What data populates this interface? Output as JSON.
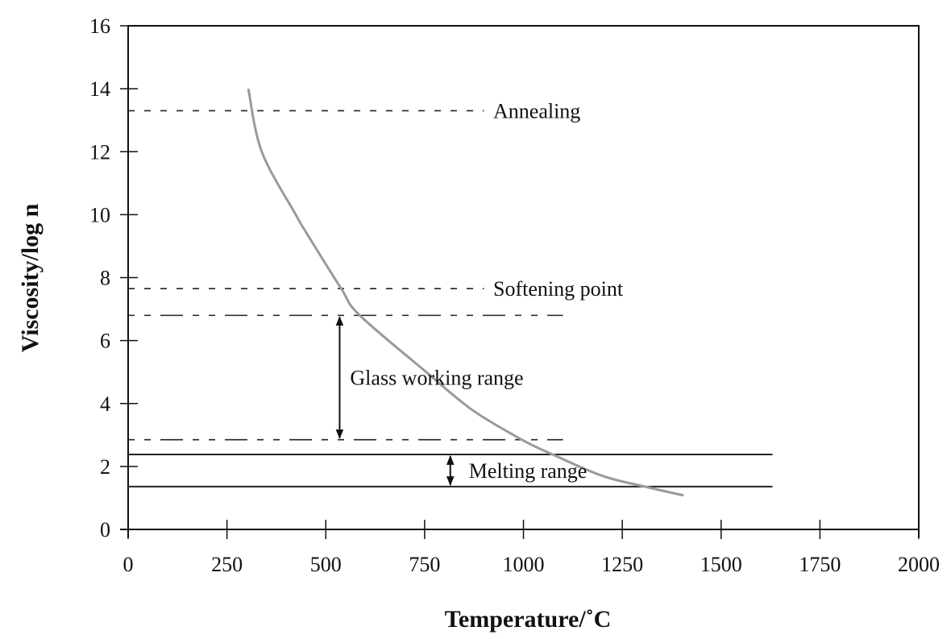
{
  "chart_data": {
    "type": "line",
    "title": "",
    "xlabel": "Temperature/˚C",
    "ylabel": "Viscosity/log n",
    "xlim": [
      0,
      2000
    ],
    "ylim": [
      0,
      16
    ],
    "xticks": [
      "0",
      "250",
      "500",
      "750",
      "1000",
      "1250",
      "1500",
      "1750",
      "2000"
    ],
    "yticks": [
      "0",
      "2",
      "4",
      "6",
      "8",
      "10",
      "12",
      "14",
      "16"
    ],
    "grid": false,
    "curve": {
      "color": "#9a9a9a",
      "points": [
        [
          304,
          14.0
        ],
        [
          338,
          12.0
        ],
        [
          424,
          10.0
        ],
        [
          452,
          9.4
        ],
        [
          539,
          7.65
        ],
        [
          586,
          6.8
        ],
        [
          754,
          5.0
        ],
        [
          870,
          3.8
        ],
        [
          996,
          2.85
        ],
        [
          1074,
          2.38
        ],
        [
          1200,
          1.7
        ],
        [
          1307,
          1.36
        ],
        [
          1405,
          1.08
        ]
      ]
    },
    "reference_lines": [
      {
        "label": "Annealing",
        "y": 13.3,
        "x_end": 900,
        "style": "dashed"
      },
      {
        "label": "Softening point",
        "y": 7.65,
        "x_end": 900,
        "style": "dashed"
      },
      {
        "label": "",
        "y": 6.8,
        "x_end": 1100,
        "style": "dash-dot"
      },
      {
        "label": "",
        "y": 2.85,
        "x_end": 1100,
        "style": "dash-dot"
      },
      {
        "label": "",
        "y": 2.38,
        "x_end": 1630,
        "style": "solid"
      },
      {
        "label": "",
        "y": 1.36,
        "x_end": 1630,
        "style": "solid"
      }
    ],
    "ranges": [
      {
        "label": "Glass working range",
        "from": 2.85,
        "to": 6.8,
        "arrow_x": 535
      },
      {
        "label": "Melting range",
        "from": 1.36,
        "to": 2.38,
        "arrow_x": 815
      }
    ]
  }
}
